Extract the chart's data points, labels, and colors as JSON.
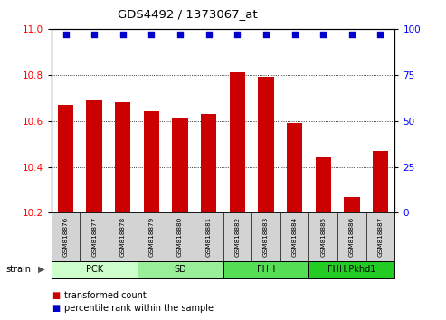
{
  "title": "GDS4492 / 1373067_at",
  "samples": [
    "GSM818876",
    "GSM818877",
    "GSM818878",
    "GSM818879",
    "GSM818880",
    "GSM818881",
    "GSM818882",
    "GSM818883",
    "GSM818884",
    "GSM818885",
    "GSM818886",
    "GSM818887"
  ],
  "bar_values": [
    10.67,
    10.69,
    10.68,
    10.64,
    10.61,
    10.63,
    10.81,
    10.79,
    10.59,
    10.44,
    10.27,
    10.47
  ],
  "percentile_values": [
    97,
    97,
    97,
    97,
    97,
    97,
    97,
    97,
    97,
    97,
    97,
    97
  ],
  "bar_color": "#cc0000",
  "percentile_color": "#0000cc",
  "ylim_left": [
    10.2,
    11.0
  ],
  "ylim_right": [
    0,
    100
  ],
  "yticks_left": [
    10.2,
    10.4,
    10.6,
    10.8,
    11.0
  ],
  "yticks_right": [
    0,
    25,
    50,
    75,
    100
  ],
  "groups": [
    {
      "label": "PCK",
      "start": 0,
      "end": 3,
      "color": "#ccffcc"
    },
    {
      "label": "SD",
      "start": 3,
      "end": 6,
      "color": "#99ee99"
    },
    {
      "label": "FHH",
      "start": 6,
      "end": 9,
      "color": "#55dd55"
    },
    {
      "label": "FHH.Pkhd1",
      "start": 9,
      "end": 12,
      "color": "#22cc22"
    }
  ],
  "strain_label": "strain",
  "legend_items": [
    {
      "label": "transformed count",
      "color": "#cc0000"
    },
    {
      "label": "percentile rank within the sample",
      "color": "#0000cc"
    }
  ]
}
